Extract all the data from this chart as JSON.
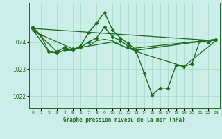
{
  "xlabel": "Graphe pression niveau de la mer (hPa)",
  "background_color": "#cceee8",
  "grid_color": "#aaddcc",
  "line_color": "#1a6b1a",
  "ylim": [
    1021.55,
    1025.45
  ],
  "yticks": [
    1022,
    1023,
    1024
  ],
  "xlim": [
    -0.5,
    23.5
  ],
  "xticks": [
    0,
    1,
    2,
    3,
    4,
    5,
    6,
    7,
    8,
    9,
    10,
    11,
    12,
    13,
    14,
    15,
    16,
    17,
    18,
    19,
    20,
    21,
    22,
    23
  ],
  "series": [
    {
      "x": [
        0,
        1,
        2,
        3,
        4,
        5,
        6,
        7,
        8,
        9,
        10,
        11,
        12,
        13,
        14,
        15,
        16,
        17,
        18,
        19,
        20,
        21,
        22,
        23
      ],
      "y": [
        1024.55,
        1024.25,
        1023.65,
        1023.6,
        1023.7,
        1023.75,
        1023.8,
        1024.0,
        1024.15,
        1024.55,
        1024.2,
        1024.05,
        1023.85,
        1023.65,
        1022.85,
        1022.05,
        1022.3,
        1022.3,
        1023.15,
        1023.1,
        1023.2,
        1024.05,
        1024.0,
        1024.1
      ],
      "marker": "D",
      "markersize": 2.5,
      "linewidth": 1.0
    },
    {
      "x": [
        0,
        3,
        4,
        5,
        6,
        7,
        8,
        9,
        10,
        11,
        12,
        13,
        23
      ],
      "y": [
        1024.5,
        1023.65,
        1023.8,
        1023.7,
        1023.85,
        1024.35,
        1024.7,
        1025.1,
        1024.45,
        1024.15,
        1023.95,
        1023.7,
        1024.1
      ],
      "marker": "D",
      "markersize": 2.5,
      "linewidth": 1.0
    },
    {
      "x": [
        0,
        23
      ],
      "y": [
        1024.5,
        1024.05
      ],
      "marker": null,
      "linewidth": 0.9
    },
    {
      "x": [
        0,
        2,
        3,
        4,
        5,
        6,
        7,
        8,
        9,
        10,
        11,
        12,
        23
      ],
      "y": [
        1024.45,
        1023.65,
        1023.6,
        1023.7,
        1023.7,
        1023.8,
        1023.85,
        1024.05,
        1024.1,
        1024.05,
        1023.9,
        1023.75,
        1024.1
      ],
      "marker": null,
      "linewidth": 0.9
    },
    {
      "x": [
        0,
        5,
        10,
        14,
        19,
        23
      ],
      "y": [
        1024.4,
        1023.75,
        1024.0,
        1023.55,
        1023.1,
        1024.05
      ],
      "marker": null,
      "linewidth": 0.9
    }
  ]
}
